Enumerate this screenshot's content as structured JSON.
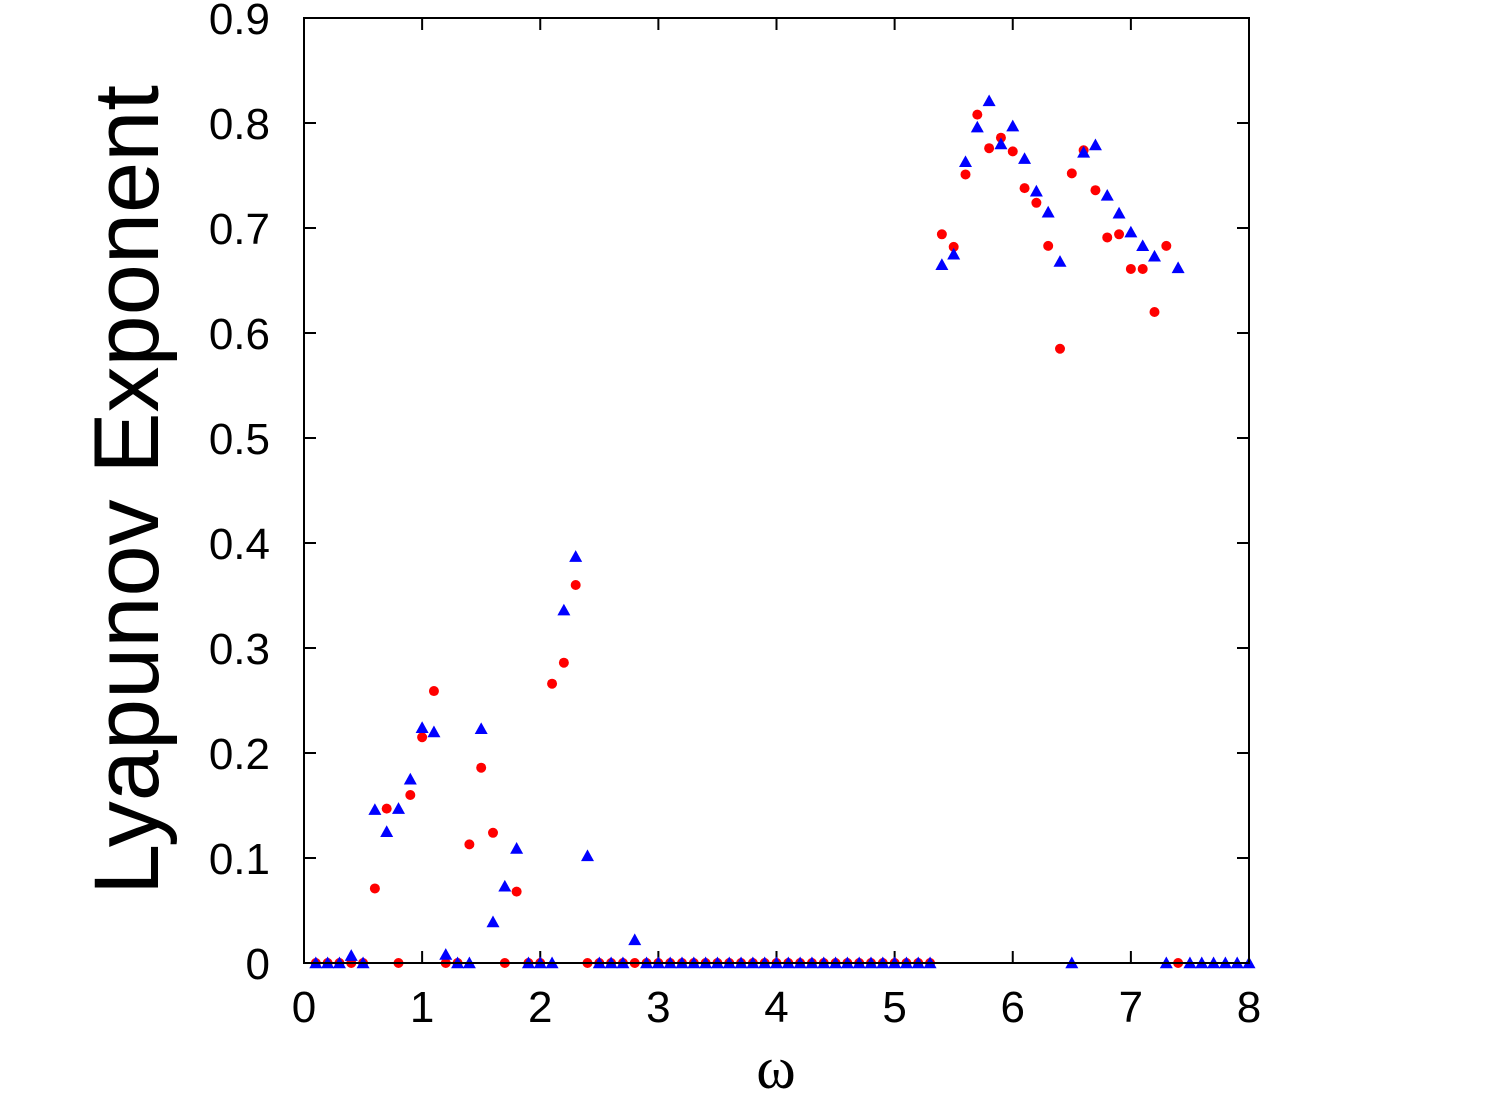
{
  "chart_data": {
    "type": "scatter",
    "title": "",
    "xlabel": "ω",
    "ylabel": "Lyapunov Exponent",
    "xlim": [
      0,
      8
    ],
    "ylim": [
      0,
      0.9
    ],
    "x_ticks": [
      "0",
      "1",
      "2",
      "3",
      "4",
      "5",
      "6",
      "7",
      "8"
    ],
    "y_ticks": [
      "0",
      "0.1",
      "0.2",
      "0.3",
      "0.4",
      "0.5",
      "0.6",
      "0.7",
      "0.8",
      "0.9"
    ],
    "grid": false,
    "legend": "none",
    "series": [
      {
        "marker": "circle",
        "color": "#ff0000",
        "points": [
          [
            0.1,
            0
          ],
          [
            0.2,
            0
          ],
          [
            0.3,
            0
          ],
          [
            0.4,
            0
          ],
          [
            0.5,
            0
          ],
          [
            0.6,
            0.071
          ],
          [
            0.7,
            0.147
          ],
          [
            0.8,
            0
          ],
          [
            0.9,
            0.16
          ],
          [
            1.0,
            0.215
          ],
          [
            1.1,
            0.259
          ],
          [
            1.2,
            0
          ],
          [
            1.3,
            0
          ],
          [
            1.4,
            0.113
          ],
          [
            1.5,
            0.186
          ],
          [
            1.6,
            0.124
          ],
          [
            1.7,
            0
          ],
          [
            1.8,
            0.068
          ],
          [
            1.9,
            0
          ],
          [
            2.0,
            0
          ],
          [
            2.1,
            0.266
          ],
          [
            2.2,
            0.286
          ],
          [
            2.3,
            0.36
          ],
          [
            2.4,
            0
          ],
          [
            2.5,
            0
          ],
          [
            2.6,
            0
          ],
          [
            2.7,
            0
          ],
          [
            2.8,
            0
          ],
          [
            2.9,
            0
          ],
          [
            3.0,
            0
          ],
          [
            3.1,
            0
          ],
          [
            3.2,
            0
          ],
          [
            3.3,
            0
          ],
          [
            3.4,
            0
          ],
          [
            3.5,
            0
          ],
          [
            3.6,
            0
          ],
          [
            3.7,
            0
          ],
          [
            3.8,
            0
          ],
          [
            3.9,
            0
          ],
          [
            4.0,
            0
          ],
          [
            4.1,
            0
          ],
          [
            4.2,
            0
          ],
          [
            4.3,
            0
          ],
          [
            4.4,
            0
          ],
          [
            4.5,
            0
          ],
          [
            4.6,
            0
          ],
          [
            4.7,
            0
          ],
          [
            4.8,
            0
          ],
          [
            4.9,
            0
          ],
          [
            5.0,
            0
          ],
          [
            5.1,
            0
          ],
          [
            5.2,
            0
          ],
          [
            5.3,
            0
          ],
          [
            5.4,
            0.694
          ],
          [
            5.5,
            0.682
          ],
          [
            5.6,
            0.751
          ],
          [
            5.7,
            0.808
          ],
          [
            5.8,
            0.776
          ],
          [
            5.9,
            0.786
          ],
          [
            6.0,
            0.773
          ],
          [
            6.1,
            0.738
          ],
          [
            6.2,
            0.724
          ],
          [
            6.3,
            0.683
          ],
          [
            6.4,
            0.585
          ],
          [
            6.5,
            0.752
          ],
          [
            6.6,
            0.774
          ],
          [
            6.7,
            0.736
          ],
          [
            6.8,
            0.691
          ],
          [
            6.9,
            0.694
          ],
          [
            7.0,
            0.661
          ],
          [
            7.1,
            0.661
          ],
          [
            7.2,
            0.62
          ],
          [
            7.3,
            0.683
          ],
          [
            7.4,
            0
          ]
        ]
      },
      {
        "marker": "triangle",
        "color": "#0000ff",
        "points": [
          [
            0.1,
            0
          ],
          [
            0.2,
            0
          ],
          [
            0.3,
            0
          ],
          [
            0.4,
            0.007
          ],
          [
            0.5,
            0
          ],
          [
            0.6,
            0.146
          ],
          [
            0.7,
            0.125
          ],
          [
            0.8,
            0.147
          ],
          [
            0.9,
            0.175
          ],
          [
            1.0,
            0.224
          ],
          [
            1.1,
            0.22
          ],
          [
            1.2,
            0.008
          ],
          [
            1.3,
            0
          ],
          [
            1.4,
            0
          ],
          [
            1.5,
            0.223
          ],
          [
            1.6,
            0.039
          ],
          [
            1.7,
            0.073
          ],
          [
            1.8,
            0.109
          ],
          [
            1.9,
            0
          ],
          [
            2.0,
            0
          ],
          [
            2.1,
            0
          ],
          [
            2.2,
            0.336
          ],
          [
            2.3,
            0.387
          ],
          [
            2.4,
            0.102
          ],
          [
            2.5,
            0
          ],
          [
            2.6,
            0
          ],
          [
            2.7,
            0
          ],
          [
            2.8,
            0.022
          ],
          [
            2.9,
            0
          ],
          [
            3.0,
            0
          ],
          [
            3.1,
            0
          ],
          [
            3.2,
            0
          ],
          [
            3.3,
            0
          ],
          [
            3.4,
            0
          ],
          [
            3.5,
            0
          ],
          [
            3.6,
            0
          ],
          [
            3.7,
            0
          ],
          [
            3.8,
            0
          ],
          [
            3.9,
            0
          ],
          [
            4.0,
            0
          ],
          [
            4.1,
            0
          ],
          [
            4.2,
            0
          ],
          [
            4.3,
            0
          ],
          [
            4.4,
            0
          ],
          [
            4.5,
            0
          ],
          [
            4.6,
            0
          ],
          [
            4.7,
            0
          ],
          [
            4.8,
            0
          ],
          [
            4.9,
            0
          ],
          [
            5.0,
            0
          ],
          [
            5.1,
            0
          ],
          [
            5.2,
            0
          ],
          [
            5.3,
            0
          ],
          [
            5.4,
            0.665
          ],
          [
            5.5,
            0.675
          ],
          [
            5.6,
            0.763
          ],
          [
            5.7,
            0.796
          ],
          [
            5.8,
            0.821
          ],
          [
            5.9,
            0.78
          ],
          [
            6.0,
            0.797
          ],
          [
            6.1,
            0.766
          ],
          [
            6.2,
            0.735
          ],
          [
            6.3,
            0.715
          ],
          [
            6.4,
            0.668
          ],
          [
            6.5,
            0
          ],
          [
            6.6,
            0.772
          ],
          [
            6.7,
            0.779
          ],
          [
            6.8,
            0.731
          ],
          [
            6.9,
            0.714
          ],
          [
            7.0,
            0.696
          ],
          [
            7.1,
            0.683
          ],
          [
            7.2,
            0.673
          ],
          [
            7.3,
            0
          ],
          [
            7.4,
            0.662
          ],
          [
            7.5,
            0
          ],
          [
            7.6,
            0
          ],
          [
            7.7,
            0
          ],
          [
            7.8,
            0
          ],
          [
            7.9,
            0
          ],
          [
            8.0,
            0
          ]
        ]
      }
    ]
  }
}
